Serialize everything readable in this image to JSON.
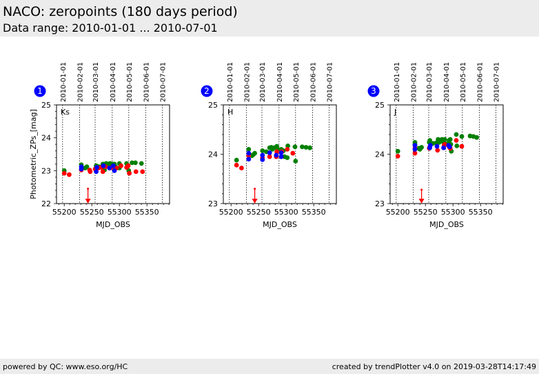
{
  "header": {
    "title": "NACO: zeropoints (180 days period)",
    "subtitle": "Data range: 2010-01-01 ... 2010-07-01"
  },
  "footer": {
    "left": "powered by QC: www.eso.org/HC",
    "right": "created by trendPlotter v4.0 on 2019-03-28T14:17:49"
  },
  "colors": {
    "red": "#ff0000",
    "green": "#008000",
    "blue": "#0000ff",
    "badge": "#0000ff",
    "grid": "#000000"
  },
  "chart_data": [
    {
      "type": "scatter",
      "badge": "1",
      "label": "Ks",
      "xlabel": "MJD_OBS",
      "ylabel": "Photometric_ZPs_[mag]",
      "xlim": [
        55186,
        55391
      ],
      "ylim": [
        22,
        25
      ],
      "xticks": [
        55200,
        55250,
        55300,
        55350
      ],
      "yticks": [
        22,
        23,
        24,
        25
      ],
      "date_lines": [
        {
          "label": "2010-01-01",
          "mjd": 55197
        },
        {
          "label": "2010-02-01",
          "mjd": 55228
        },
        {
          "label": "2010-03-01",
          "mjd": 55256
        },
        {
          "label": "2010-04-01",
          "mjd": 55287
        },
        {
          "label": "2010-05-01",
          "mjd": 55317
        },
        {
          "label": "2010-06-01",
          "mjd": 55348
        },
        {
          "label": "2010-07-01",
          "mjd": 55378
        }
      ],
      "upper_limit_arrow": {
        "mjd": 55243,
        "from": 22.45,
        "to": 22.0
      },
      "series": [
        {
          "name": "red",
          "points": [
            [
              55200,
              22.92
            ],
            [
              55209,
              22.88
            ],
            [
              55231,
              23.02
            ],
            [
              55246,
              23.02
            ],
            [
              55247,
              22.97
            ],
            [
              55256,
              23.05
            ],
            [
              55262,
              23.08
            ],
            [
              55267,
              23.1
            ],
            [
              55270,
              22.97
            ],
            [
              55275,
              23.12
            ],
            [
              55283,
              23.08
            ],
            [
              55286,
              23.1
            ],
            [
              55291,
              23.05
            ],
            [
              55295,
              23.08
            ],
            [
              55303,
              23.15
            ],
            [
              55313,
              23.1
            ],
            [
              55316,
              23.15
            ],
            [
              55318,
              22.92
            ],
            [
              55330,
              22.97
            ],
            [
              55342,
              22.97
            ]
          ]
        },
        {
          "name": "green",
          "points": [
            [
              55200,
              23.0
            ],
            [
              55231,
              23.18
            ],
            [
              55238,
              23.08
            ],
            [
              55241,
              23.12
            ],
            [
              55258,
              23.15
            ],
            [
              55263,
              23.12
            ],
            [
              55270,
              23.2
            ],
            [
              55273,
              23.02
            ],
            [
              55276,
              23.22
            ],
            [
              55280,
              23.2
            ],
            [
              55283,
              23.22
            ],
            [
              55287,
              23.2
            ],
            [
              55289,
              23.18
            ],
            [
              55291,
              23.2
            ],
            [
              55293,
              23.12
            ],
            [
              55300,
              23.22
            ],
            [
              55300,
              23.08
            ],
            [
              55313,
              23.22
            ],
            [
              55317,
              23.0
            ],
            [
              55323,
              23.24
            ],
            [
              55329,
              23.24
            ],
            [
              55340,
              23.22
            ]
          ]
        },
        {
          "name": "blue",
          "points": [
            [
              55231,
              23.12
            ],
            [
              55231,
              23.05
            ],
            [
              55258,
              22.97
            ],
            [
              55259,
              23.1
            ],
            [
              55271,
              23.15
            ],
            [
              55282,
              23.08
            ],
            [
              55289,
              23.15
            ],
            [
              55291,
              23.0
            ]
          ]
        }
      ]
    },
    {
      "type": "scatter",
      "badge": "2",
      "label": "H",
      "xlabel": "MJD_OBS",
      "ylabel": "",
      "xlim": [
        55186,
        55391
      ],
      "ylim": [
        23,
        25
      ],
      "xticks": [
        55200,
        55250,
        55300,
        55350
      ],
      "yticks": [
        23,
        24,
        25
      ],
      "date_lines": [
        {
          "label": "2010-01-01",
          "mjd": 55197
        },
        {
          "label": "2010-02-01",
          "mjd": 55228
        },
        {
          "label": "2010-03-01",
          "mjd": 55256
        },
        {
          "label": "2010-04-01",
          "mjd": 55287
        },
        {
          "label": "2010-05-01",
          "mjd": 55317
        },
        {
          "label": "2010-06-01",
          "mjd": 55348
        },
        {
          "label": "2010-07-01",
          "mjd": 55378
        }
      ],
      "upper_limit_arrow": {
        "mjd": 55243,
        "from": 23.3,
        "to": 23.0
      },
      "series": [
        {
          "name": "red",
          "points": [
            [
              55210,
              23.78
            ],
            [
              55219,
              23.72
            ],
            [
              55232,
              23.97
            ],
            [
              55257,
              23.93
            ],
            [
              55270,
              23.95
            ],
            [
              55282,
              23.95
            ],
            [
              55283,
              24.05
            ],
            [
              55291,
              23.95
            ],
            [
              55292,
              24.05
            ],
            [
              55302,
              24.1
            ],
            [
              55312,
              24.02
            ]
          ]
        },
        {
          "name": "green",
          "points": [
            [
              55210,
              23.88
            ],
            [
              55232,
              24.1
            ],
            [
              55238,
              23.97
            ],
            [
              55240,
              23.99
            ],
            [
              55243,
              24.02
            ],
            [
              55257,
              24.07
            ],
            [
              55264,
              24.05
            ],
            [
              55270,
              24.13
            ],
            [
              55273,
              24.14
            ],
            [
              55275,
              24.1
            ],
            [
              55278,
              24.13
            ],
            [
              55283,
              24.16
            ],
            [
              55285,
              24.1
            ],
            [
              55291,
              24.1
            ],
            [
              55293,
              24.08
            ],
            [
              55295,
              24.07
            ],
            [
              55297,
              23.95
            ],
            [
              55302,
              23.93
            ],
            [
              55303,
              24.17
            ],
            [
              55316,
              24.15
            ],
            [
              55317,
              23.86
            ],
            [
              55329,
              24.15
            ],
            [
              55336,
              24.14
            ],
            [
              55343,
              24.13
            ]
          ]
        },
        {
          "name": "blue",
          "points": [
            [
              55232,
              24.02
            ],
            [
              55232,
              23.9
            ],
            [
              55257,
              23.98
            ],
            [
              55257,
              23.89
            ],
            [
              55270,
              24.03
            ],
            [
              55282,
              23.98
            ],
            [
              55291,
              24.03
            ],
            [
              55291,
              23.95
            ]
          ]
        }
      ]
    },
    {
      "type": "scatter",
      "badge": "3",
      "label": "J",
      "xlabel": "MJD_OBS",
      "ylabel": "",
      "xlim": [
        55186,
        55391
      ],
      "ylim": [
        23,
        25
      ],
      "xticks": [
        55200,
        55250,
        55300,
        55350
      ],
      "yticks": [
        23,
        24,
        25
      ],
      "date_lines": [
        {
          "label": "2010-01-01",
          "mjd": 55197
        },
        {
          "label": "2010-02-01",
          "mjd": 55228
        },
        {
          "label": "2010-03-01",
          "mjd": 55256
        },
        {
          "label": "2010-04-01",
          "mjd": 55287
        },
        {
          "label": "2010-05-01",
          "mjd": 55317
        },
        {
          "label": "2010-06-01",
          "mjd": 55348
        },
        {
          "label": "2010-07-01",
          "mjd": 55378
        }
      ],
      "upper_limit_arrow": {
        "mjd": 55243,
        "from": 23.28,
        "to": 23.0
      },
      "series": [
        {
          "name": "red",
          "points": [
            [
              55200,
              23.96
            ],
            [
              55231,
              24.02
            ],
            [
              55231,
              24.12
            ],
            [
              55257,
              24.12
            ],
            [
              55258,
              24.15
            ],
            [
              55272,
              24.08
            ],
            [
              55284,
              24.18
            ],
            [
              55285,
              24.2
            ],
            [
              55293,
              24.15
            ],
            [
              55295,
              24.12
            ],
            [
              55306,
              24.28
            ],
            [
              55316,
              24.16
            ]
          ]
        },
        {
          "name": "green",
          "points": [
            [
              55200,
              24.06
            ],
            [
              55231,
              24.24
            ],
            [
              55231,
              24.2
            ],
            [
              55238,
              24.12
            ],
            [
              55240,
              24.1
            ],
            [
              55243,
              24.14
            ],
            [
              55257,
              24.24
            ],
            [
              55258,
              24.28
            ],
            [
              55264,
              24.22
            ],
            [
              55270,
              24.23
            ],
            [
              55273,
              24.3
            ],
            [
              55275,
              24.24
            ],
            [
              55280,
              24.3
            ],
            [
              55283,
              24.24
            ],
            [
              55285,
              24.3
            ],
            [
              55291,
              24.22
            ],
            [
              55293,
              24.28
            ],
            [
              55295,
              24.3
            ],
            [
              55296,
              24.2
            ],
            [
              55297,
              24.06
            ],
            [
              55306,
              24.4
            ],
            [
              55307,
              24.17
            ],
            [
              55316,
              24.36
            ],
            [
              55331,
              24.37
            ],
            [
              55337,
              24.36
            ],
            [
              55343,
              24.34
            ]
          ]
        },
        {
          "name": "blue",
          "points": [
            [
              55231,
              24.18
            ],
            [
              55231,
              24.1
            ],
            [
              55258,
              24.13
            ],
            [
              55259,
              24.18
            ],
            [
              55271,
              24.16
            ],
            [
              55283,
              24.13
            ],
            [
              55292,
              24.18
            ],
            [
              55294,
              24.15
            ]
          ]
        }
      ]
    }
  ]
}
